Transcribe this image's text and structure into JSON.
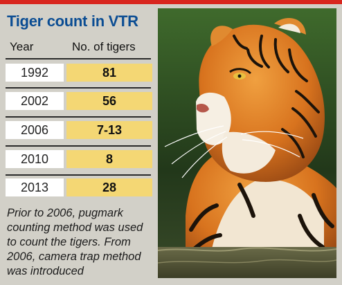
{
  "title": "Tiger count in VTR",
  "table": {
    "headers": [
      "Year",
      "No. of tigers"
    ],
    "rows": [
      {
        "year": "1992",
        "count": "81"
      },
      {
        "year": "2002",
        "count": "56"
      },
      {
        "year": "2006",
        "count": "7-13"
      },
      {
        "year": "2010",
        "count": "8"
      },
      {
        "year": "2013",
        "count": "28"
      }
    ]
  },
  "note": "Prior to 2006, pugmark counting method was used to count the tigers. From 2006, camera trap method was introduced",
  "chart_data": {
    "type": "table",
    "title": "Tiger count in VTR",
    "columns": [
      "Year",
      "No. of tigers"
    ],
    "rows": [
      [
        "1992",
        "81"
      ],
      [
        "2002",
        "56"
      ],
      [
        "2006",
        "7-13"
      ],
      [
        "2010",
        "8"
      ],
      [
        "2013",
        "28"
      ]
    ]
  },
  "colors": {
    "accent_bar": "#d8261e",
    "title": "#0b4d93",
    "count_cell": "#f4d774",
    "background": "#d2d0c8"
  },
  "photo": {
    "icon": "tiger-photo"
  }
}
